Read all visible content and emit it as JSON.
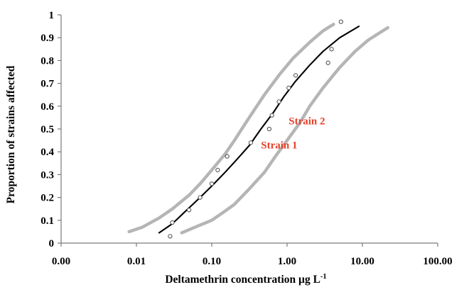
{
  "chart_data": {
    "type": "scatter",
    "xlabel": "Deltamethrin concentration µg L",
    "xlabel_superscript": "-1",
    "ylabel": "Proportion of strains affected",
    "x_scale": "log",
    "xlim": [
      0.001,
      100
    ],
    "ylim": [
      0,
      1
    ],
    "x_ticks": [
      "0.00",
      "0.01",
      "0.10",
      "1.00",
      "10.00",
      "100.00"
    ],
    "y_ticks": [
      "0",
      "0.1",
      "0.2",
      "0.3",
      "0.4",
      "0.5",
      "0.6",
      "0.7",
      "0.8",
      "0.9",
      "1"
    ],
    "grid": false,
    "annotations": [
      {
        "text": "Strain 2",
        "x": 1.05,
        "y": 0.535,
        "color": "#e8402a"
      },
      {
        "text": "Strain 1",
        "x": 0.45,
        "y": 0.43,
        "color": "#e8402a"
      }
    ],
    "series": [
      {
        "role": "fitted-curve",
        "style": "solid",
        "color": "#000000",
        "x": [
          0.02,
          0.03,
          0.045,
          0.07,
          0.1,
          0.15,
          0.22,
          0.32,
          0.45,
          0.65,
          0.9,
          1.3,
          2.0,
          3.0,
          5.0,
          9.0
        ],
        "y": [
          0.045,
          0.085,
          0.14,
          0.2,
          0.25,
          0.31,
          0.37,
          0.43,
          0.5,
          0.57,
          0.64,
          0.71,
          0.78,
          0.84,
          0.9,
          0.95
        ]
      },
      {
        "role": "upper-confidence-band",
        "style": "dotted",
        "color": "#b5b5b5",
        "x": [
          0.008,
          0.012,
          0.02,
          0.03,
          0.05,
          0.07,
          0.1,
          0.15,
          0.2,
          0.3,
          0.5,
          0.8,
          1.2,
          2.0,
          3.0,
          4.2
        ],
        "y": [
          0.05,
          0.07,
          0.11,
          0.15,
          0.21,
          0.26,
          0.32,
          0.39,
          0.45,
          0.54,
          0.65,
          0.74,
          0.81,
          0.88,
          0.93,
          0.96
        ]
      },
      {
        "role": "lower-confidence-band",
        "style": "dotted",
        "color": "#b5b5b5",
        "x": [
          0.04,
          0.06,
          0.1,
          0.15,
          0.2,
          0.3,
          0.5,
          0.7,
          1.0,
          1.5,
          2.0,
          3.0,
          5.0,
          8.0,
          12.0,
          22.0
        ],
        "y": [
          0.045,
          0.07,
          0.1,
          0.14,
          0.17,
          0.23,
          0.31,
          0.38,
          0.45,
          0.53,
          0.6,
          0.68,
          0.77,
          0.84,
          0.89,
          0.945
        ]
      },
      {
        "role": "observed-points",
        "marker": "open-circle",
        "color": "#555555",
        "x": [
          0.028,
          0.03,
          0.05,
          0.07,
          0.1,
          0.12,
          0.16,
          0.33,
          0.58,
          0.63,
          0.78,
          1.05,
          1.3,
          3.5,
          3.9,
          5.2
        ],
        "y": [
          0.03,
          0.09,
          0.145,
          0.2,
          0.26,
          0.32,
          0.38,
          0.44,
          0.5,
          0.56,
          0.62,
          0.68,
          0.735,
          0.79,
          0.85,
          0.97
        ]
      }
    ]
  }
}
